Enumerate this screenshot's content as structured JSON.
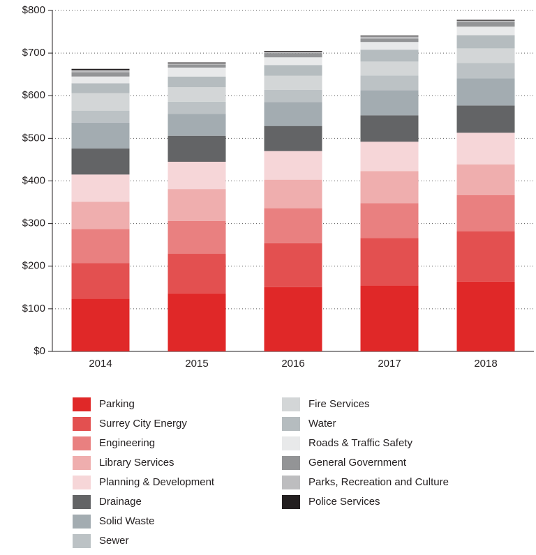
{
  "chart_data": {
    "type": "stacked_bar",
    "categories": [
      "2014",
      "2015",
      "2016",
      "2017",
      "2018"
    ],
    "ylim": [
      0,
      800
    ],
    "yticks": [
      {
        "value": 0,
        "label": "$0"
      },
      {
        "value": 100,
        "label": "$100"
      },
      {
        "value": 200,
        "label": "$200"
      },
      {
        "value": 300,
        "label": "$300"
      },
      {
        "value": 400,
        "label": "$400"
      },
      {
        "value": 500,
        "label": "$500"
      },
      {
        "value": 600,
        "label": "$600"
      },
      {
        "value": 700,
        "label": "$700"
      },
      {
        "value": 800,
        "label": "$800"
      }
    ],
    "grid": true,
    "series": [
      {
        "name": "Parking",
        "color": "#e02828",
        "values": [
          124,
          136,
          151,
          155,
          164
        ]
      },
      {
        "name": "Surrey City Energy",
        "color": "#e35050",
        "values": [
          83,
          93,
          103,
          111,
          118
        ]
      },
      {
        "name": "Engineering",
        "color": "#e98080",
        "values": [
          80,
          77,
          82,
          82,
          85
        ]
      },
      {
        "name": "Library Services",
        "color": "#efaeae",
        "values": [
          64,
          75,
          67,
          75,
          72
        ]
      },
      {
        "name": "Planning & Development",
        "color": "#f6d6d8",
        "values": [
          64,
          64,
          67,
          69,
          74
        ]
      },
      {
        "name": "Drainage",
        "color": "#636466",
        "values": [
          61,
          61,
          59,
          62,
          64
        ]
      },
      {
        "name": "Solid Waste",
        "color": "#a3acb1",
        "values": [
          61,
          51,
          56,
          59,
          64
        ]
      },
      {
        "name": "Sewer",
        "color": "#bcc2c5",
        "values": [
          28,
          29,
          29,
          34,
          36
        ]
      },
      {
        "name": "Fire Services",
        "color": "#d3d6d7",
        "values": [
          41,
          34,
          33,
          33,
          34
        ]
      },
      {
        "name": "Water",
        "color": "#b5bcbf",
        "values": [
          23,
          25,
          25,
          28,
          31
        ]
      },
      {
        "name": "Roads & Traffic Safety",
        "color": "#e8e9ea",
        "values": [
          16,
          21,
          18,
          18,
          20
        ]
      },
      {
        "name": "General Government",
        "color": "#939496",
        "values": [
          10,
          7,
          10,
          8,
          11
        ]
      },
      {
        "name": "Parks, Recreation and Culture",
        "color": "#bdbdbf",
        "values": [
          5,
          3,
          3,
          5,
          3
        ]
      },
      {
        "name": "Police Services",
        "color": "#231f20",
        "values": [
          3,
          2,
          2,
          2,
          2
        ]
      }
    ]
  }
}
